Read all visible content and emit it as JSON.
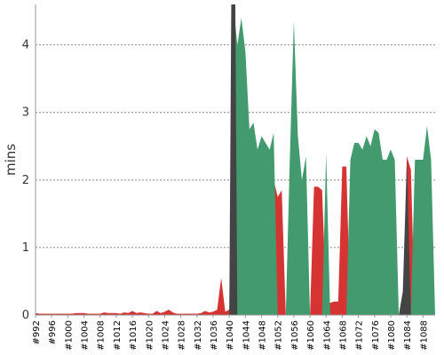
{
  "chart_data": {
    "type": "area",
    "ylabel": "mins",
    "xlabel": "",
    "ylim": [
      0,
      4.6
    ],
    "yticks": [
      0,
      1,
      2,
      3,
      4
    ],
    "grid": true,
    "x_start": 992,
    "x_end": 1090,
    "xtick_labels": [
      "#992",
      "#996",
      "#1000",
      "#1004",
      "#1008",
      "#1012",
      "#1016",
      "#1020",
      "#1024",
      "#1028",
      "#1032",
      "#1036",
      "#1040",
      "#1044",
      "#1048",
      "#1052",
      "#1056",
      "#1060",
      "#1064",
      "#1068",
      "#1072",
      "#1076",
      "#1080",
      "#1084",
      "#1088"
    ],
    "series": [
      {
        "color": "#d63333",
        "points": [
          [
            992,
            0.03
          ],
          [
            993,
            0.02
          ],
          [
            994,
            0.02
          ],
          [
            995,
            0.02
          ],
          [
            996,
            0.02
          ],
          [
            997,
            0.02
          ],
          [
            998,
            0.02
          ],
          [
            999,
            0.02
          ],
          [
            1000,
            0.02
          ],
          [
            1001,
            0.02
          ],
          [
            1002,
            0.03
          ],
          [
            1003,
            0.03
          ],
          [
            1004,
            0.03
          ],
          [
            1005,
            0.02
          ],
          [
            1006,
            0.02
          ],
          [
            1007,
            0.02
          ],
          [
            1008,
            0.02
          ],
          [
            1009,
            0.04
          ],
          [
            1010,
            0.03
          ],
          [
            1011,
            0.03
          ],
          [
            1012,
            0.03
          ],
          [
            1013,
            0.02
          ],
          [
            1014,
            0.04
          ],
          [
            1015,
            0.03
          ],
          [
            1016,
            0.06
          ],
          [
            1017,
            0.03
          ],
          [
            1018,
            0.04
          ],
          [
            1019,
            0.03
          ],
          [
            1020,
            0.02
          ],
          [
            1021,
            0.02
          ],
          [
            1022,
            0.06
          ],
          [
            1023,
            0.03
          ],
          [
            1024,
            0.05
          ],
          [
            1025,
            0.08
          ],
          [
            1026,
            0.04
          ],
          [
            1027,
            0.02
          ],
          [
            1028,
            0.02
          ],
          [
            1029,
            0.02
          ],
          [
            1030,
            0.02
          ],
          [
            1031,
            0.02
          ],
          [
            1032,
            0.02
          ],
          [
            1033,
            0.03
          ],
          [
            1034,
            0.06
          ],
          [
            1035,
            0.04
          ],
          [
            1036,
            0.05
          ],
          [
            1037,
            0.08
          ],
          [
            1038,
            0.55
          ],
          [
            1039,
            0.05
          ],
          [
            1040,
            0.08
          ],
          [
            1041,
            0
          ],
          [
            1050,
            0
          ],
          [
            1051,
            2.0
          ],
          [
            1052,
            1.75
          ],
          [
            1053,
            1.85
          ],
          [
            1054,
            0
          ],
          [
            1057,
            0
          ],
          [
            1058,
            1.9
          ],
          [
            1059,
            0
          ],
          [
            1060,
            0
          ],
          [
            1061,
            1.9
          ],
          [
            1062,
            1.9
          ],
          [
            1063,
            1.85
          ],
          [
            1064,
            0.2
          ],
          [
            1065,
            0.18
          ],
          [
            1066,
            0.2
          ],
          [
            1067,
            0.2
          ],
          [
            1068,
            2.2
          ],
          [
            1069,
            2.2
          ],
          [
            1070,
            0
          ],
          [
            1083,
            0
          ],
          [
            1084,
            2.35
          ],
          [
            1085,
            2.15
          ],
          [
            1086,
            0
          ],
          [
            1089,
            0
          ],
          [
            1090,
            0.16
          ]
        ]
      },
      {
        "color": "#439a6e",
        "points": [
          [
            992,
            0
          ],
          [
            1040,
            0
          ],
          [
            1041,
            4.6
          ],
          [
            1042,
            4.0
          ],
          [
            1043,
            4.4
          ],
          [
            1044,
            3.9
          ],
          [
            1045,
            2.75
          ],
          [
            1046,
            2.85
          ],
          [
            1047,
            2.45
          ],
          [
            1048,
            2.65
          ],
          [
            1049,
            2.55
          ],
          [
            1050,
            2.45
          ],
          [
            1051,
            2.7
          ],
          [
            1052,
            0
          ],
          [
            1054,
            0
          ],
          [
            1055,
            2.3
          ],
          [
            1056,
            4.35
          ],
          [
            1057,
            2.65
          ],
          [
            1058,
            2.0
          ],
          [
            1059,
            2.35
          ],
          [
            1060,
            0
          ],
          [
            1063,
            0
          ],
          [
            1064,
            2.4
          ],
          [
            1065,
            0
          ],
          [
            1069,
            0
          ],
          [
            1070,
            2.3
          ],
          [
            1071,
            2.55
          ],
          [
            1072,
            2.55
          ],
          [
            1073,
            2.45
          ],
          [
            1074,
            2.65
          ],
          [
            1075,
            2.5
          ],
          [
            1076,
            2.75
          ],
          [
            1077,
            2.7
          ],
          [
            1078,
            2.3
          ],
          [
            1079,
            2.3
          ],
          [
            1080,
            2.45
          ],
          [
            1081,
            2.3
          ],
          [
            1082,
            0
          ],
          [
            1085,
            0
          ],
          [
            1086,
            2.3
          ],
          [
            1087,
            2.3
          ],
          [
            1088,
            2.3
          ],
          [
            1089,
            2.8
          ],
          [
            1090,
            2.3
          ],
          [
            1091,
            0
          ]
        ]
      },
      {
        "color": "#444444",
        "points": [
          [
            1040,
            0
          ],
          [
            1040.5,
            4.6
          ],
          [
            1041.5,
            4.6
          ],
          [
            1042,
            0
          ],
          [
            1082,
            0
          ],
          [
            1083,
            0.35
          ],
          [
            1084,
            2.3
          ],
          [
            1085,
            0
          ]
        ]
      }
    ]
  }
}
